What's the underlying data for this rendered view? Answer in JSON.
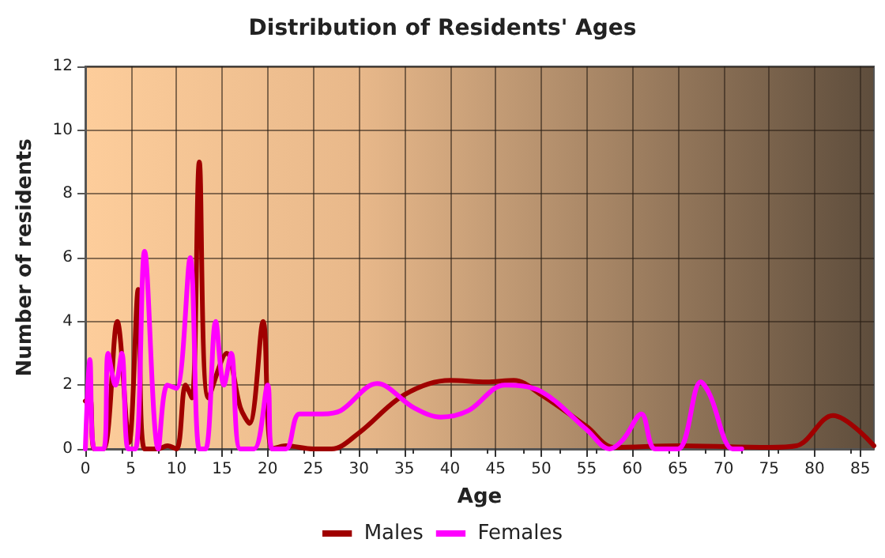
{
  "chart_data": {
    "type": "line",
    "title": "Distribution of Residents' Ages",
    "xlabel": "Age",
    "ylabel": "Number of residents",
    "xlim": [
      0,
      86.5
    ],
    "xticks": [
      0,
      5,
      10,
      15,
      20,
      25,
      30,
      35,
      40,
      45,
      50,
      55,
      60,
      65,
      70,
      75,
      80,
      85
    ],
    "ylim": [
      0,
      12
    ],
    "yticks": [
      0,
      2,
      4,
      6,
      8,
      10,
      12
    ],
    "grid": true,
    "legend": "bottom",
    "marker": "none",
    "line_style": "solid",
    "series": [
      {
        "name": "Males",
        "color": "#a00000",
        "x": [
          0,
          0.5,
          1,
          2,
          3.5,
          4.8,
          5.8,
          6.5,
          8,
          9,
          10,
          11,
          11.7,
          12.5,
          13.5,
          15.5,
          17,
          18,
          19.5,
          20.5,
          22,
          25,
          27,
          30,
          35,
          40,
          44,
          47,
          50,
          55,
          58,
          65,
          75,
          78,
          82,
          86.5
        ],
        "values": [
          1.5,
          1.6,
          0,
          0,
          4,
          0.2,
          5,
          0,
          0,
          0.1,
          0,
          2,
          1.6,
          9,
          1.6,
          3,
          1.3,
          0.8,
          4,
          0,
          0.1,
          0,
          0,
          0.5,
          1.7,
          2.15,
          2.1,
          2.15,
          1.7,
          0.7,
          0.05,
          0.1,
          0.05,
          0.1,
          1.05,
          0.1
        ]
      },
      {
        "name": "Females",
        "color": "#ff00ff",
        "x": [
          0,
          0.5,
          1,
          2,
          2.5,
          3.3,
          4,
          4.7,
          5.5,
          6.5,
          8,
          9,
          10,
          11.5,
          12.5,
          13.2,
          14.3,
          15.2,
          16,
          17,
          18.5,
          20,
          20.5,
          22,
          23.5,
          26,
          28,
          32,
          36,
          39,
          42,
          46,
          50,
          55,
          57.5,
          59,
          61,
          62.5,
          65,
          67.5,
          68.5,
          71,
          72
        ],
        "values": [
          0,
          2.8,
          0,
          0,
          3,
          2,
          3,
          0,
          0,
          6.2,
          0,
          2,
          1.9,
          6,
          0,
          0,
          4,
          2,
          3,
          0,
          0,
          2,
          0,
          0,
          1.1,
          1.1,
          1.2,
          2.05,
          1.3,
          1,
          1.2,
          2,
          1.8,
          0.6,
          0,
          0.3,
          1.1,
          0,
          0,
          2.1,
          1.7,
          0,
          0
        ]
      }
    ]
  }
}
